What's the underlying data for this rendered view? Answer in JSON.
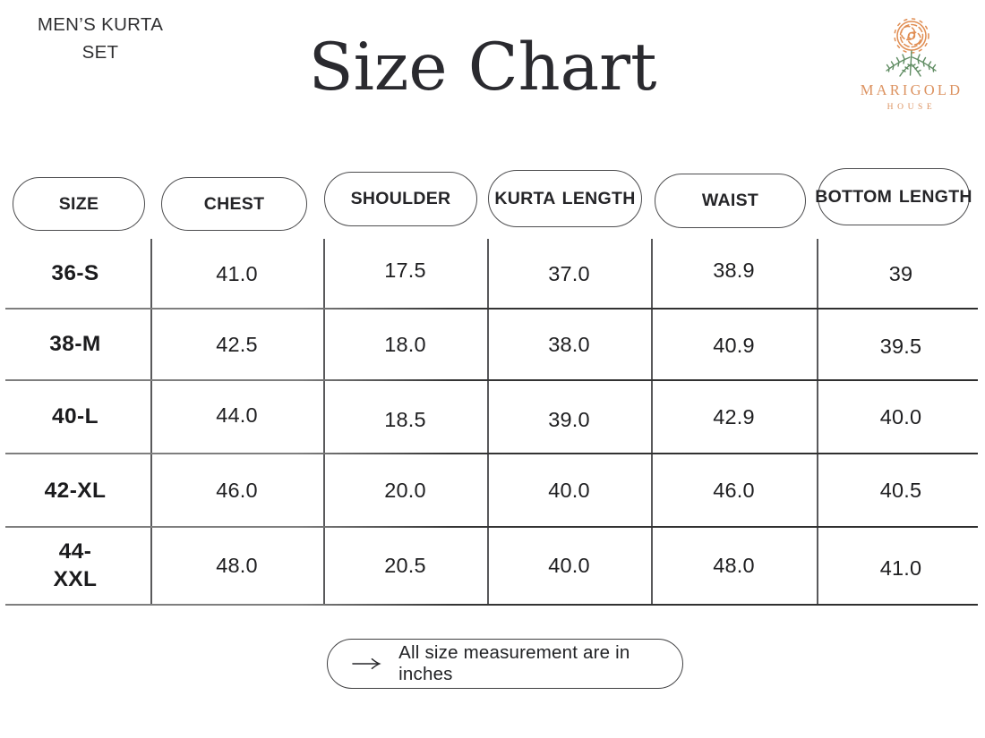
{
  "page": {
    "product_label": "MEN’S KURTA\nSET",
    "title": "Size Chart",
    "logo": {
      "brand": "MARIGOLD",
      "sub": "HOUSE"
    },
    "footer_note": "All size measurement are in inches"
  },
  "colors": {
    "ink": "#2a2a2f",
    "table_line": "#59595b",
    "logo_orange": "#dc9260",
    "logo_green": "#5f8c62"
  },
  "icons": {
    "logo_flower": "marigold-flower-icon",
    "footer_arrow": "right-arrow-icon"
  },
  "chart_data": {
    "type": "table",
    "title": "Size Chart",
    "subtitle": "MEN’S KURTA SET",
    "columns": [
      "SIZE",
      "CHEST",
      "SHOULDER",
      "KURTA LENGTH",
      "WAIST",
      "BOTTOM LENGTH"
    ],
    "rows": [
      {
        "size": "36-S",
        "values": [
          "41.0",
          "17.5",
          "37.0",
          "38.9",
          "39"
        ]
      },
      {
        "size": "38-M",
        "values": [
          "42.5",
          "18.0",
          "38.0",
          "40.9",
          "39.5"
        ]
      },
      {
        "size": "40-L",
        "values": [
          "44.0",
          "18.5",
          "39.0",
          "42.9",
          "40.0"
        ]
      },
      {
        "size": "42-XL",
        "values": [
          "46.0",
          "20.0",
          "40.0",
          "46.0",
          "40.5"
        ]
      },
      {
        "size": "44-XXL",
        "values": [
          "48.0",
          "20.5",
          "40.0",
          "48.0",
          "41.0"
        ]
      }
    ],
    "note": "All size measurement are in inches",
    "units": "inches"
  }
}
